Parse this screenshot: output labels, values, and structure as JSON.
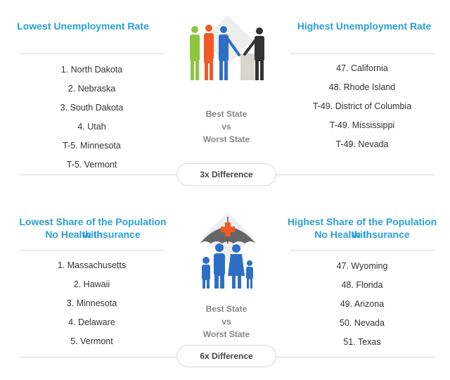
{
  "section1": {
    "left_title": "Lowest Unemployment Rate",
    "right_title": "Highest Unemployment Rate",
    "left_items": [
      "1. North Dakota",
      "2. Nebraska",
      "3. South Dakota",
      "4. Utah",
      "T-5. Minnesota",
      "T-5. Vermont"
    ],
    "right_items": [
      "47. California",
      "48. Rhode Island",
      "T-49. District of Columbia",
      "T-49. Mississippi",
      "T-49. Nevada"
    ],
    "center_line1": "Best State",
    "center_line2": "vs",
    "center_line3": "Worst State",
    "difference": "3x Difference",
    "icon": "people-handshake-icon"
  },
  "section2": {
    "left_title_line1": "Lowest Share of the Population with",
    "left_title_line2": "No Health Insurance",
    "right_title_line1": "Highest Share of the Population with",
    "right_title_line2": "No Health Insurance",
    "left_items": [
      "1. Massachusetts",
      "2. Hawaii",
      "3. Minnesota",
      "4. Delaware",
      "5. Vermont"
    ],
    "right_items": [
      "47. Wyoming",
      "48. Florida",
      "49. Arizona",
      "50. Nevada",
      "51. Texas"
    ],
    "center_line1": "Best State",
    "center_line2": "vs",
    "center_line3": "Worst State",
    "difference": "6x Difference",
    "icon": "family-umbrella-icon"
  },
  "colors": {
    "title": "#2a9fd6",
    "rule": "#d9d9d9",
    "diamond": "#eeeeee",
    "green": "#8dc63f",
    "orange": "#f15a24",
    "blue": "#2e6fc6",
    "dark": "#333333",
    "umbrella_gray": "#666666",
    "cross_red": "#f15a24"
  }
}
